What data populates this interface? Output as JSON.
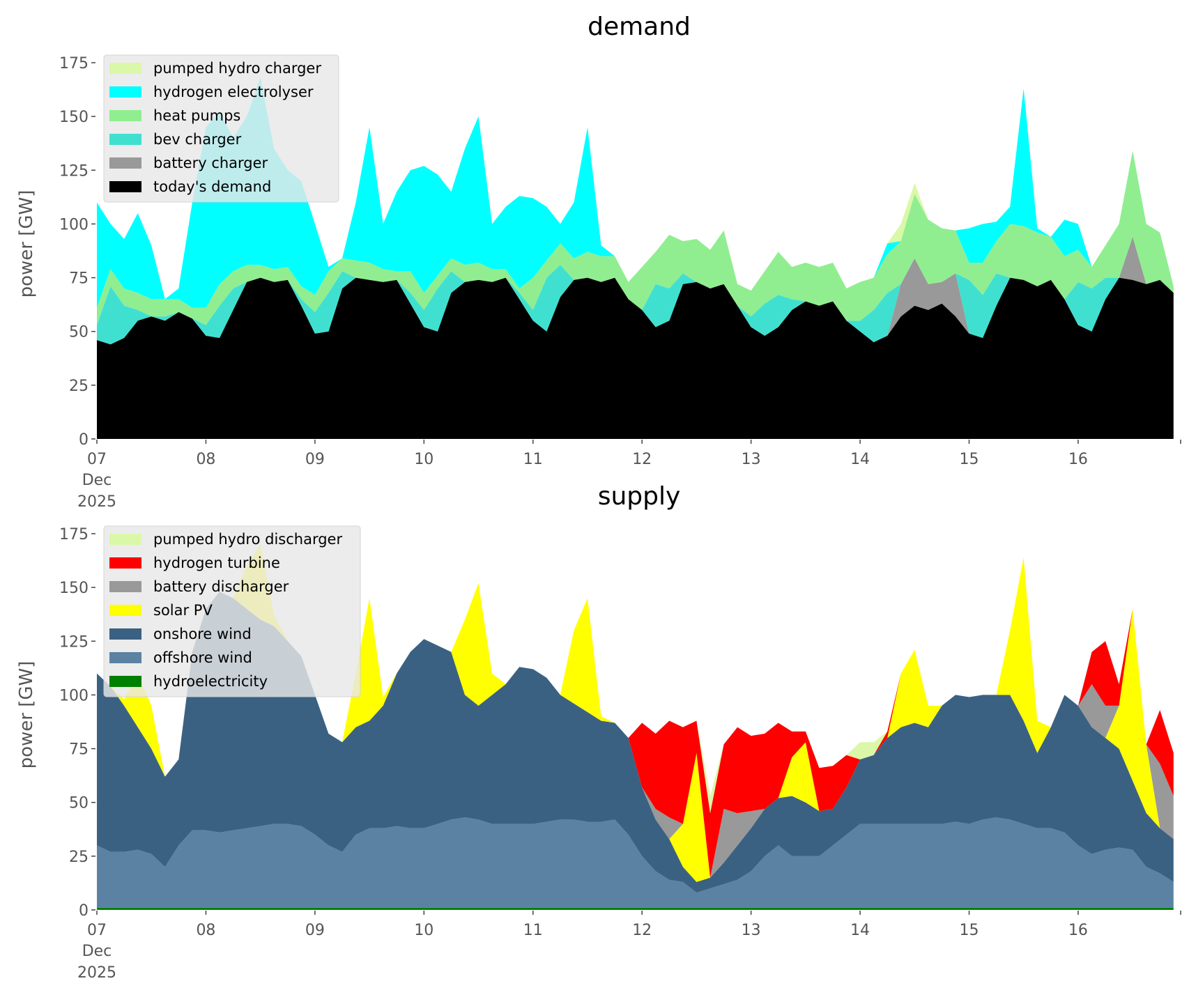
{
  "chart_data": [
    {
      "type": "area",
      "stacked": true,
      "title": "demand",
      "ylabel": "power [GW]",
      "xlabel": "",
      "x_start_day": 7,
      "x_step_hours": 3,
      "xlim": [
        7,
        16.94
      ],
      "ylim": [
        0,
        175
      ],
      "yticks": [
        0,
        25,
        50,
        75,
        100,
        125,
        150,
        175
      ],
      "xticks": [
        7,
        8,
        9,
        10,
        11,
        12,
        13,
        14,
        15,
        16
      ],
      "xtick_labels": [
        "07",
        "08",
        "09",
        "10",
        "11",
        "12",
        "13",
        "14",
        "15",
        "16"
      ],
      "xtick_month": "Dec",
      "xtick_year": "2025",
      "grid": false,
      "legend_position": "top-left",
      "series": [
        {
          "name": "today's demand",
          "color": "#000000",
          "values": [
            46,
            44,
            47,
            55,
            57,
            55,
            59,
            56,
            48,
            47,
            60,
            73,
            75,
            73,
            74,
            62,
            49,
            50,
            70,
            75,
            74,
            73,
            74,
            63,
            52,
            50,
            68,
            73,
            74,
            73,
            75,
            65,
            55,
            50,
            66,
            74,
            75,
            73,
            75,
            65,
            60,
            52,
            55,
            72,
            73,
            70,
            72,
            62,
            52,
            48,
            52,
            60,
            64,
            62,
            64,
            55,
            50,
            45,
            48,
            57,
            62,
            60,
            63,
            57,
            49,
            47,
            62,
            75,
            74,
            71,
            74,
            65,
            53,
            50,
            65,
            75,
            74,
            72,
            74,
            68
          ]
        },
        {
          "name": "battery charger",
          "color": "#999999",
          "values": [
            0,
            0,
            0,
            0,
            0,
            0,
            0,
            0,
            0,
            0,
            0,
            0,
            0,
            0,
            0,
            0,
            0,
            0,
            0,
            0,
            0,
            0,
            0,
            0,
            0,
            0,
            0,
            0,
            0,
            0,
            0,
            0,
            0,
            0,
            0,
            0,
            0,
            0,
            0,
            0,
            0,
            0,
            0,
            0,
            0,
            0,
            0,
            0,
            0,
            0,
            0,
            0,
            0,
            0,
            0,
            0,
            0,
            0,
            0,
            15,
            22,
            12,
            10,
            20,
            0,
            0,
            0,
            0,
            0,
            0,
            0,
            0,
            0,
            0,
            0,
            0,
            20,
            0,
            0,
            0
          ]
        },
        {
          "name": "bev charger",
          "color": "#40e0d0",
          "values": [
            7,
            27,
            15,
            5,
            0,
            2,
            0,
            0,
            5,
            15,
            10,
            0,
            0,
            0,
            0,
            3,
            10,
            18,
            8,
            0,
            0,
            0,
            0,
            5,
            8,
            20,
            10,
            0,
            0,
            0,
            0,
            3,
            5,
            25,
            15,
            0,
            0,
            0,
            0,
            0,
            0,
            20,
            15,
            5,
            0,
            0,
            0,
            0,
            5,
            15,
            15,
            5,
            0,
            0,
            0,
            0,
            5,
            15,
            20,
            0,
            0,
            0,
            0,
            0,
            25,
            20,
            15,
            0,
            0,
            0,
            0,
            0,
            20,
            20,
            10,
            0,
            0,
            0,
            0,
            0
          ]
        },
        {
          "name": "heat pumps",
          "color": "#90ee90",
          "values": [
            8,
            8,
            8,
            8,
            8,
            8,
            6,
            5,
            8,
            10,
            8,
            8,
            6,
            6,
            6,
            6,
            8,
            10,
            6,
            8,
            8,
            6,
            4,
            10,
            8,
            6,
            6,
            8,
            8,
            6,
            4,
            2,
            15,
            8,
            10,
            10,
            12,
            12,
            10,
            8,
            20,
            15,
            25,
            15,
            20,
            18,
            25,
            10,
            12,
            15,
            20,
            15,
            18,
            18,
            18,
            15,
            18,
            15,
            18,
            20,
            30,
            30,
            25,
            20,
            8,
            15,
            15,
            25,
            25,
            25,
            20,
            20,
            15,
            10,
            15,
            25,
            40,
            28,
            22,
            3
          ]
        },
        {
          "name": "hydrogen electrolyser",
          "color": "#00ffff",
          "values": [
            49,
            21,
            23,
            37,
            25,
            0,
            5,
            49,
            84,
            80,
            62,
            69,
            87,
            56,
            45,
            49,
            33,
            2,
            0,
            27,
            63,
            21,
            37,
            47,
            59,
            47,
            31,
            54,
            68,
            21,
            29,
            43,
            37,
            25,
            9,
            26,
            58,
            5,
            0,
            0,
            0,
            0,
            0,
            0,
            0,
            0,
            0,
            0,
            0,
            0,
            0,
            0,
            0,
            0,
            0,
            0,
            0,
            0,
            5,
            0,
            0,
            0,
            0,
            0,
            16,
            18,
            9,
            8,
            64,
            2,
            0,
            17,
            12,
            0,
            0,
            0,
            0,
            0,
            0,
            0
          ]
        },
        {
          "name": "pumped hydro charger",
          "color": "#dbf7a8",
          "values": [
            0,
            0,
            0,
            0,
            0,
            0,
            0,
            0,
            0,
            0,
            0,
            0,
            0,
            0,
            0,
            0,
            0,
            0,
            0,
            0,
            0,
            0,
            0,
            0,
            0,
            0,
            0,
            0,
            0,
            0,
            0,
            0,
            0,
            0,
            0,
            0,
            0,
            0,
            0,
            0,
            0,
            0,
            0,
            0,
            0,
            0,
            0,
            0,
            0,
            0,
            0,
            0,
            0,
            0,
            0,
            0,
            0,
            0,
            0,
            8,
            5,
            0,
            0,
            0,
            0,
            0,
            0,
            0,
            0,
            0,
            0,
            0,
            0,
            0,
            0,
            0,
            0,
            0,
            0,
            0
          ]
        }
      ]
    },
    {
      "type": "area",
      "stacked": true,
      "title": "supply",
      "ylabel": "power [GW]",
      "xlabel": "",
      "x_start_day": 7,
      "x_step_hours": 3,
      "xlim": [
        7,
        16.94
      ],
      "ylim": [
        0,
        175
      ],
      "yticks": [
        0,
        25,
        50,
        75,
        100,
        125,
        150,
        175
      ],
      "xticks": [
        7,
        8,
        9,
        10,
        11,
        12,
        13,
        14,
        15,
        16
      ],
      "xtick_labels": [
        "07",
        "08",
        "09",
        "10",
        "11",
        "12",
        "13",
        "14",
        "15",
        "16"
      ],
      "xtick_month": "Dec",
      "xtick_year": "2025",
      "grid": false,
      "legend_position": "top-left",
      "series": [
        {
          "name": "hydroelectricity",
          "color": "#008000",
          "values": [
            1,
            1,
            1,
            1,
            1,
            1,
            1,
            1,
            1,
            1,
            1,
            1,
            1,
            1,
            1,
            1,
            1,
            1,
            1,
            1,
            1,
            1,
            1,
            1,
            1,
            1,
            1,
            1,
            1,
            1,
            1,
            1,
            1,
            1,
            1,
            1,
            1,
            1,
            1,
            1,
            1,
            1,
            1,
            1,
            1,
            1,
            1,
            1,
            1,
            1,
            1,
            1,
            1,
            1,
            1,
            1,
            1,
            1,
            1,
            1,
            1,
            1,
            1,
            1,
            1,
            1,
            1,
            1,
            1,
            1,
            1,
            1,
            1,
            1,
            1,
            1,
            1,
            1,
            1,
            1
          ]
        },
        {
          "name": "offshore wind",
          "color": "#5b82a3",
          "values": [
            29,
            26,
            26,
            27,
            25,
            19,
            29,
            36,
            36,
            35,
            36,
            37,
            38,
            39,
            39,
            38,
            34,
            29,
            26,
            34,
            37,
            37,
            38,
            37,
            37,
            39,
            41,
            42,
            41,
            39,
            39,
            39,
            39,
            40,
            41,
            41,
            40,
            40,
            41,
            34,
            24,
            17,
            13,
            12,
            7,
            9,
            11,
            13,
            17,
            24,
            29,
            24,
            24,
            24,
            29,
            34,
            39,
            39,
            39,
            39,
            39,
            39,
            39,
            40,
            39,
            41,
            42,
            41,
            39,
            37,
            37,
            35,
            29,
            25,
            27,
            28,
            27,
            19,
            16,
            12
          ]
        },
        {
          "name": "onshore wind",
          "color": "#3b6182",
          "values": [
            80,
            77,
            68,
            57,
            49,
            42,
            40,
            83,
            103,
            112,
            108,
            102,
            96,
            92,
            85,
            79,
            65,
            52,
            51,
            50,
            50,
            57,
            71,
            82,
            88,
            83,
            78,
            57,
            53,
            60,
            65,
            73,
            72,
            67,
            58,
            54,
            51,
            47,
            45,
            45,
            32,
            24,
            19,
            7,
            5,
            5,
            10,
            16,
            20,
            22,
            22,
            28,
            25,
            21,
            17,
            22,
            30,
            32,
            40,
            45,
            47,
            45,
            55,
            59,
            59,
            58,
            57,
            58,
            48,
            35,
            47,
            64,
            65,
            59,
            52,
            46,
            32,
            25,
            21,
            20
          ]
        },
        {
          "name": "solar PV",
          "color": "#ffff00",
          "values": [
            0,
            0,
            3,
            25,
            20,
            0,
            0,
            0,
            0,
            0,
            0,
            20,
            35,
            5,
            0,
            0,
            0,
            0,
            0,
            25,
            57,
            4,
            0,
            0,
            0,
            0,
            0,
            35,
            57,
            10,
            0,
            0,
            0,
            0,
            0,
            34,
            53,
            2,
            0,
            0,
            0,
            0,
            0,
            20,
            60,
            0,
            0,
            0,
            0,
            0,
            0,
            18,
            28,
            0,
            0,
            0,
            0,
            0,
            0,
            25,
            34,
            10,
            0,
            0,
            0,
            0,
            0,
            30,
            76,
            15,
            0,
            0,
            0,
            0,
            0,
            20,
            80,
            32,
            0,
            0
          ]
        },
        {
          "name": "battery discharger",
          "color": "#999999",
          "values": [
            0,
            0,
            0,
            0,
            0,
            0,
            0,
            0,
            0,
            0,
            0,
            0,
            0,
            0,
            0,
            0,
            0,
            0,
            0,
            0,
            0,
            0,
            0,
            0,
            0,
            0,
            0,
            0,
            0,
            0,
            0,
            0,
            0,
            0,
            0,
            0,
            0,
            0,
            0,
            0,
            0,
            5,
            10,
            0,
            0,
            0,
            25,
            15,
            8,
            0,
            0,
            0,
            0,
            0,
            0,
            0,
            0,
            0,
            0,
            0,
            0,
            0,
            0,
            0,
            0,
            0,
            0,
            0,
            0,
            0,
            0,
            0,
            0,
            20,
            15,
            0,
            0,
            0,
            30,
            20
          ]
        },
        {
          "name": "hydrogen turbine",
          "color": "#ff0000",
          "values": [
            0,
            0,
            0,
            0,
            0,
            0,
            0,
            0,
            0,
            0,
            0,
            0,
            0,
            0,
            0,
            0,
            0,
            0,
            0,
            0,
            0,
            0,
            0,
            0,
            0,
            0,
            0,
            0,
            0,
            0,
            0,
            0,
            0,
            0,
            0,
            0,
            0,
            0,
            0,
            0,
            30,
            35,
            45,
            45,
            15,
            30,
            30,
            40,
            35,
            35,
            35,
            12,
            5,
            20,
            20,
            15,
            0,
            0,
            3,
            0,
            0,
            0,
            0,
            0,
            0,
            0,
            0,
            0,
            0,
            0,
            0,
            0,
            0,
            15,
            30,
            10,
            0,
            0,
            25,
            20
          ]
        },
        {
          "name": "pumped hydro discharger",
          "color": "#dbf7a8",
          "values": [
            0,
            0,
            0,
            0,
            0,
            0,
            0,
            0,
            0,
            0,
            0,
            0,
            0,
            0,
            0,
            0,
            0,
            0,
            0,
            0,
            0,
            0,
            0,
            0,
            0,
            0,
            0,
            0,
            0,
            0,
            0,
            0,
            0,
            0,
            0,
            0,
            0,
            0,
            0,
            0,
            0,
            0,
            0,
            0,
            0,
            8,
            0,
            0,
            0,
            0,
            0,
            0,
            0,
            0,
            0,
            0,
            8,
            6,
            0,
            0,
            0,
            0,
            0,
            0,
            0,
            0,
            0,
            0,
            0,
            0,
            0,
            0,
            0,
            0,
            0,
            0,
            0,
            0,
            0,
            0
          ]
        }
      ]
    }
  ]
}
